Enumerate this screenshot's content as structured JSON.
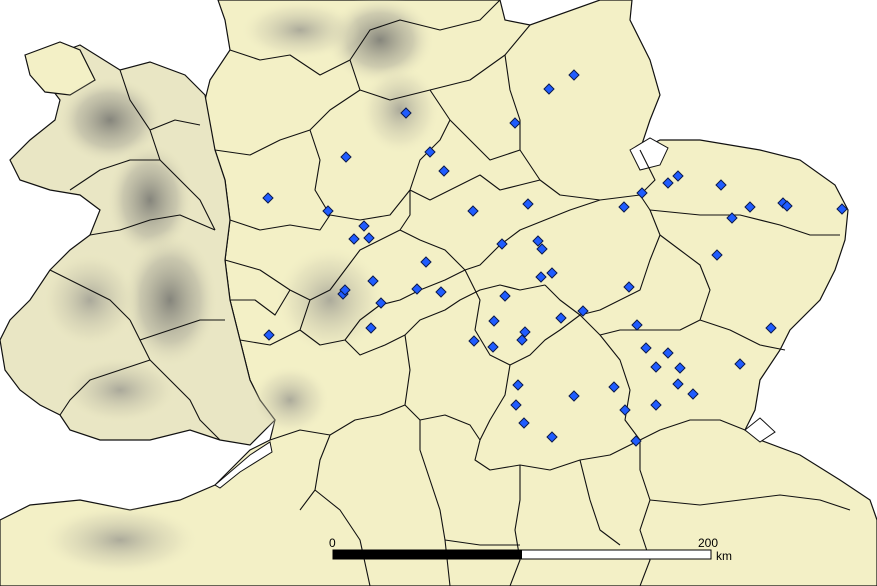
{
  "map": {
    "scale_bar": {
      "start_label": "0",
      "end_label": "200",
      "unit": "km"
    },
    "colors": {
      "sea": "#ffffff",
      "lowland": "#f3f0c6",
      "upland_shade": "#8b8b82",
      "boundary": "#111111",
      "marker_fill": "#1f5cff",
      "marker_stroke": "#0b1a4d"
    },
    "marker_count": 77
  }
}
